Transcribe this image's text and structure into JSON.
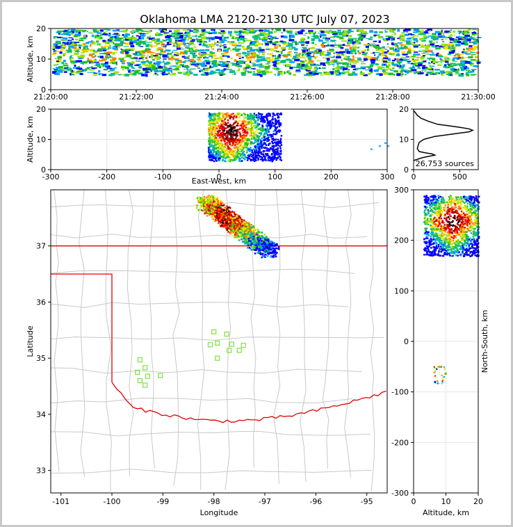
{
  "title": "Oklahoma LMA 2120-2130 UTC July 07, 2023",
  "colors": {
    "state_border": "#e00000",
    "county_lines": "#c8c8c8",
    "station_marker": "#7ee040",
    "profile_line": "#000000",
    "density_palette": [
      "#0000ff",
      "#00a0ff",
      "#00c080",
      "#20c020",
      "#a0e000",
      "#ffe000",
      "#ff8000",
      "#ff0000",
      "#c00000",
      "#800000",
      "#000000",
      "#ffffff"
    ]
  },
  "chart_data": [
    {
      "id": "time-altitude",
      "type": "heatmap",
      "xlabel": "",
      "ylabel": "Altitude, km",
      "x_ticks": [
        "21:20:00",
        "21:22:00",
        "21:24:00",
        "21:26:00",
        "21:28:00",
        "21:30:00"
      ],
      "xlim": [
        "21:20:00",
        "21:30:00"
      ],
      "ylim": [
        0,
        20
      ],
      "y_ticks": [
        0,
        10,
        20
      ],
      "source_altitude_band_km": [
        5,
        20
      ]
    },
    {
      "id": "east-west-altitude",
      "type": "heatmap",
      "xlabel": "East-West, km",
      "ylabel": "Altitude, km",
      "xlim": [
        -300,
        300
      ],
      "x_ticks": [
        -300,
        -200,
        -100,
        0,
        100,
        200,
        300
      ],
      "ylim": [
        0,
        20
      ],
      "y_ticks": [
        0,
        10,
        20
      ],
      "grid": true,
      "core_x_km": [
        -10,
        60
      ],
      "core_alt_km": [
        3,
        19
      ]
    },
    {
      "id": "altitude-histogram",
      "type": "line",
      "xlim": [
        0,
        700
      ],
      "x_ticks": [
        0,
        500
      ],
      "ylim": [
        0,
        20
      ],
      "y_ticks": [
        0,
        10,
        20
      ],
      "annotation": "26,753 sources",
      "profile": {
        "altitude_km": [
          3,
          4,
          4.8,
          5.2,
          5.6,
          6,
          7,
          8,
          9,
          10,
          11,
          12,
          12.5,
          13,
          13.5,
          14,
          14.5,
          15,
          16,
          17,
          18,
          19,
          19.5
        ],
        "count": [
          0,
          100,
          230,
          200,
          120,
          60,
          40,
          50,
          60,
          110,
          230,
          480,
          600,
          640,
          600,
          500,
          380,
          260,
          160,
          80,
          40,
          15,
          0
        ]
      }
    },
    {
      "id": "plan-view",
      "type": "heatmap",
      "xlabel": "Longitude",
      "ylabel": "Latitude",
      "xlim": [
        -101.2,
        -94.6
      ],
      "x_ticks": [
        -101,
        -100,
        -99,
        -98,
        -97,
        -96,
        -95
      ],
      "ylim": [
        32.6,
        38.0
      ],
      "y_ticks": [
        33,
        34,
        35,
        36,
        37
      ],
      "storm_lon": [
        -98.2,
        -96.9
      ],
      "storm_lat": [
        36.9,
        37.8
      ],
      "stations": [
        {
          "lon": -99.45,
          "lat": 34.97
        },
        {
          "lon": -99.35,
          "lat": 34.83
        },
        {
          "lon": -99.5,
          "lat": 34.75
        },
        {
          "lon": -99.3,
          "lat": 34.68
        },
        {
          "lon": -99.05,
          "lat": 34.69
        },
        {
          "lon": -99.45,
          "lat": 34.6
        },
        {
          "lon": -99.35,
          "lat": 34.52
        },
        {
          "lon": -98.0,
          "lat": 35.47
        },
        {
          "lon": -97.75,
          "lat": 35.43
        },
        {
          "lon": -97.93,
          "lat": 35.27
        },
        {
          "lon": -98.07,
          "lat": 35.24
        },
        {
          "lon": -97.65,
          "lat": 35.25
        },
        {
          "lon": -97.42,
          "lat": 35.23
        },
        {
          "lon": -97.7,
          "lat": 35.14
        },
        {
          "lon": -97.5,
          "lat": 35.14
        },
        {
          "lon": -97.93,
          "lat": 35.0
        }
      ]
    },
    {
      "id": "north-south-altitude",
      "type": "heatmap",
      "xlabel": "Altitude, km",
      "ylabel": "North-South, km",
      "xlim": [
        0,
        20
      ],
      "x_ticks": [
        0,
        10,
        20
      ],
      "ylim": [
        -300,
        300
      ],
      "y_ticks": [
        -300,
        -200,
        -100,
        0,
        100,
        200,
        300
      ],
      "grid": true,
      "core_y_km": [
        170,
        290
      ],
      "core_alt_km": [
        3,
        20
      ]
    }
  ]
}
